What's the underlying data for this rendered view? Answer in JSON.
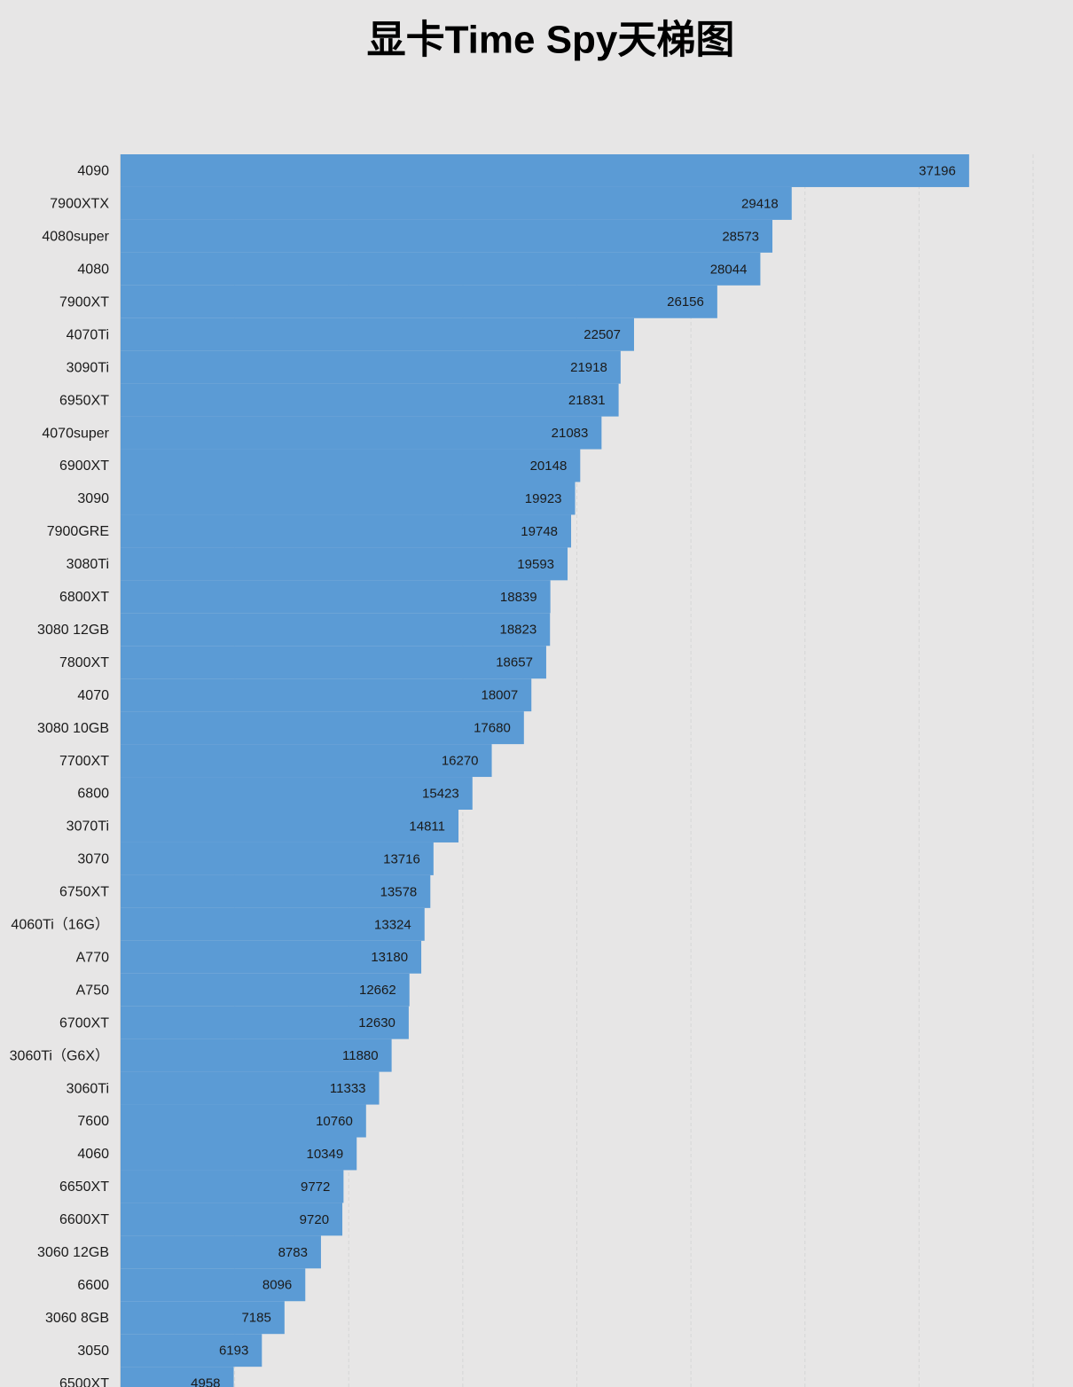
{
  "chart_data": {
    "type": "barh",
    "title": "显卡Time Spy天梯图",
    "categories": [
      "4090",
      "7900XTX",
      "4080super",
      "4080",
      "7900XT",
      "4070Ti",
      "3090Ti",
      "6950XT",
      "4070super",
      "6900XT",
      "3090",
      "7900GRE",
      "3080Ti",
      "6800XT",
      "3080 12GB",
      "7800XT",
      "4070",
      "3080 10GB",
      "7700XT",
      "6800",
      "3070Ti",
      "3070",
      "6750XT",
      "4060Ti（16G）",
      "A770",
      "A750",
      "6700XT",
      "3060Ti（G6X）",
      "3060Ti",
      "7600",
      "4060",
      "6650XT",
      "6600XT",
      "3060 12GB",
      "6600",
      "3060 8GB",
      "3050",
      "6500XT"
    ],
    "values": [
      37196,
      29418,
      28573,
      28044,
      26156,
      22507,
      21918,
      21831,
      21083,
      20148,
      19923,
      19748,
      19593,
      18839,
      18823,
      18657,
      18007,
      17680,
      16270,
      15423,
      14811,
      13716,
      13578,
      13324,
      13180,
      12662,
      12630,
      11880,
      11333,
      10760,
      10349,
      9772,
      9720,
      8783,
      8096,
      7185,
      6193,
      4958
    ],
    "color": "#5b9bd5",
    "xlim": [
      0,
      40000
    ],
    "xticks": [
      0,
      5000,
      10000,
      15000,
      20000,
      25000,
      30000,
      35000,
      40000
    ],
    "grid": true
  }
}
